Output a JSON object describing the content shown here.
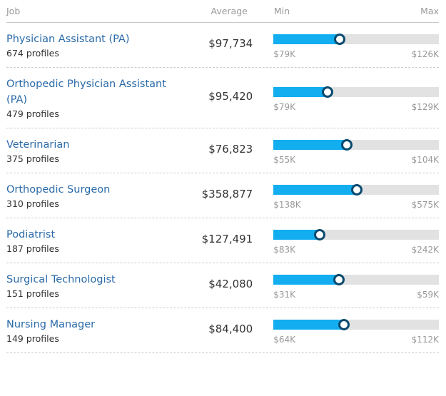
{
  "header": {
    "job": "Job",
    "average": "Average",
    "min": "Min",
    "max": "Max"
  },
  "colors": {
    "link": "#2a6aa8",
    "bar": "#12aef0",
    "track": "#e2e2e2"
  },
  "rows": [
    {
      "title": "Physician Assistant (PA)",
      "profiles": "674 profiles",
      "average": "$97,734",
      "min": "$79K",
      "max": "$126K",
      "avg_value": 97734,
      "min_value": 79000,
      "max_value": 126000
    },
    {
      "title": "Orthopedic Physician Assistant (PA)",
      "profiles": "479 profiles",
      "average": "$95,420",
      "min": "$79K",
      "max": "$129K",
      "avg_value": 95420,
      "min_value": 79000,
      "max_value": 129000
    },
    {
      "title": "Veterinarian",
      "profiles": "375 profiles",
      "average": "$76,823",
      "min": "$55K",
      "max": "$104K",
      "avg_value": 76823,
      "min_value": 55000,
      "max_value": 104000
    },
    {
      "title": "Orthopedic Surgeon",
      "profiles": "310 profiles",
      "average": "$358,877",
      "min": "$138K",
      "max": "$575K",
      "avg_value": 358877,
      "min_value": 138000,
      "max_value": 575000
    },
    {
      "title": "Podiatrist",
      "profiles": "187 profiles",
      "average": "$127,491",
      "min": "$83K",
      "max": "$242K",
      "avg_value": 127491,
      "min_value": 83000,
      "max_value": 242000
    },
    {
      "title": "Surgical Technologist",
      "profiles": "151 profiles",
      "average": "$42,080",
      "min": "$31K",
      "max": "$59K",
      "avg_value": 42080,
      "min_value": 31000,
      "max_value": 59000
    },
    {
      "title": "Nursing Manager",
      "profiles": "149 profiles",
      "average": "$84,400",
      "min": "$64K",
      "max": "$112K",
      "avg_value": 84400,
      "min_value": 64000,
      "max_value": 112000
    }
  ]
}
